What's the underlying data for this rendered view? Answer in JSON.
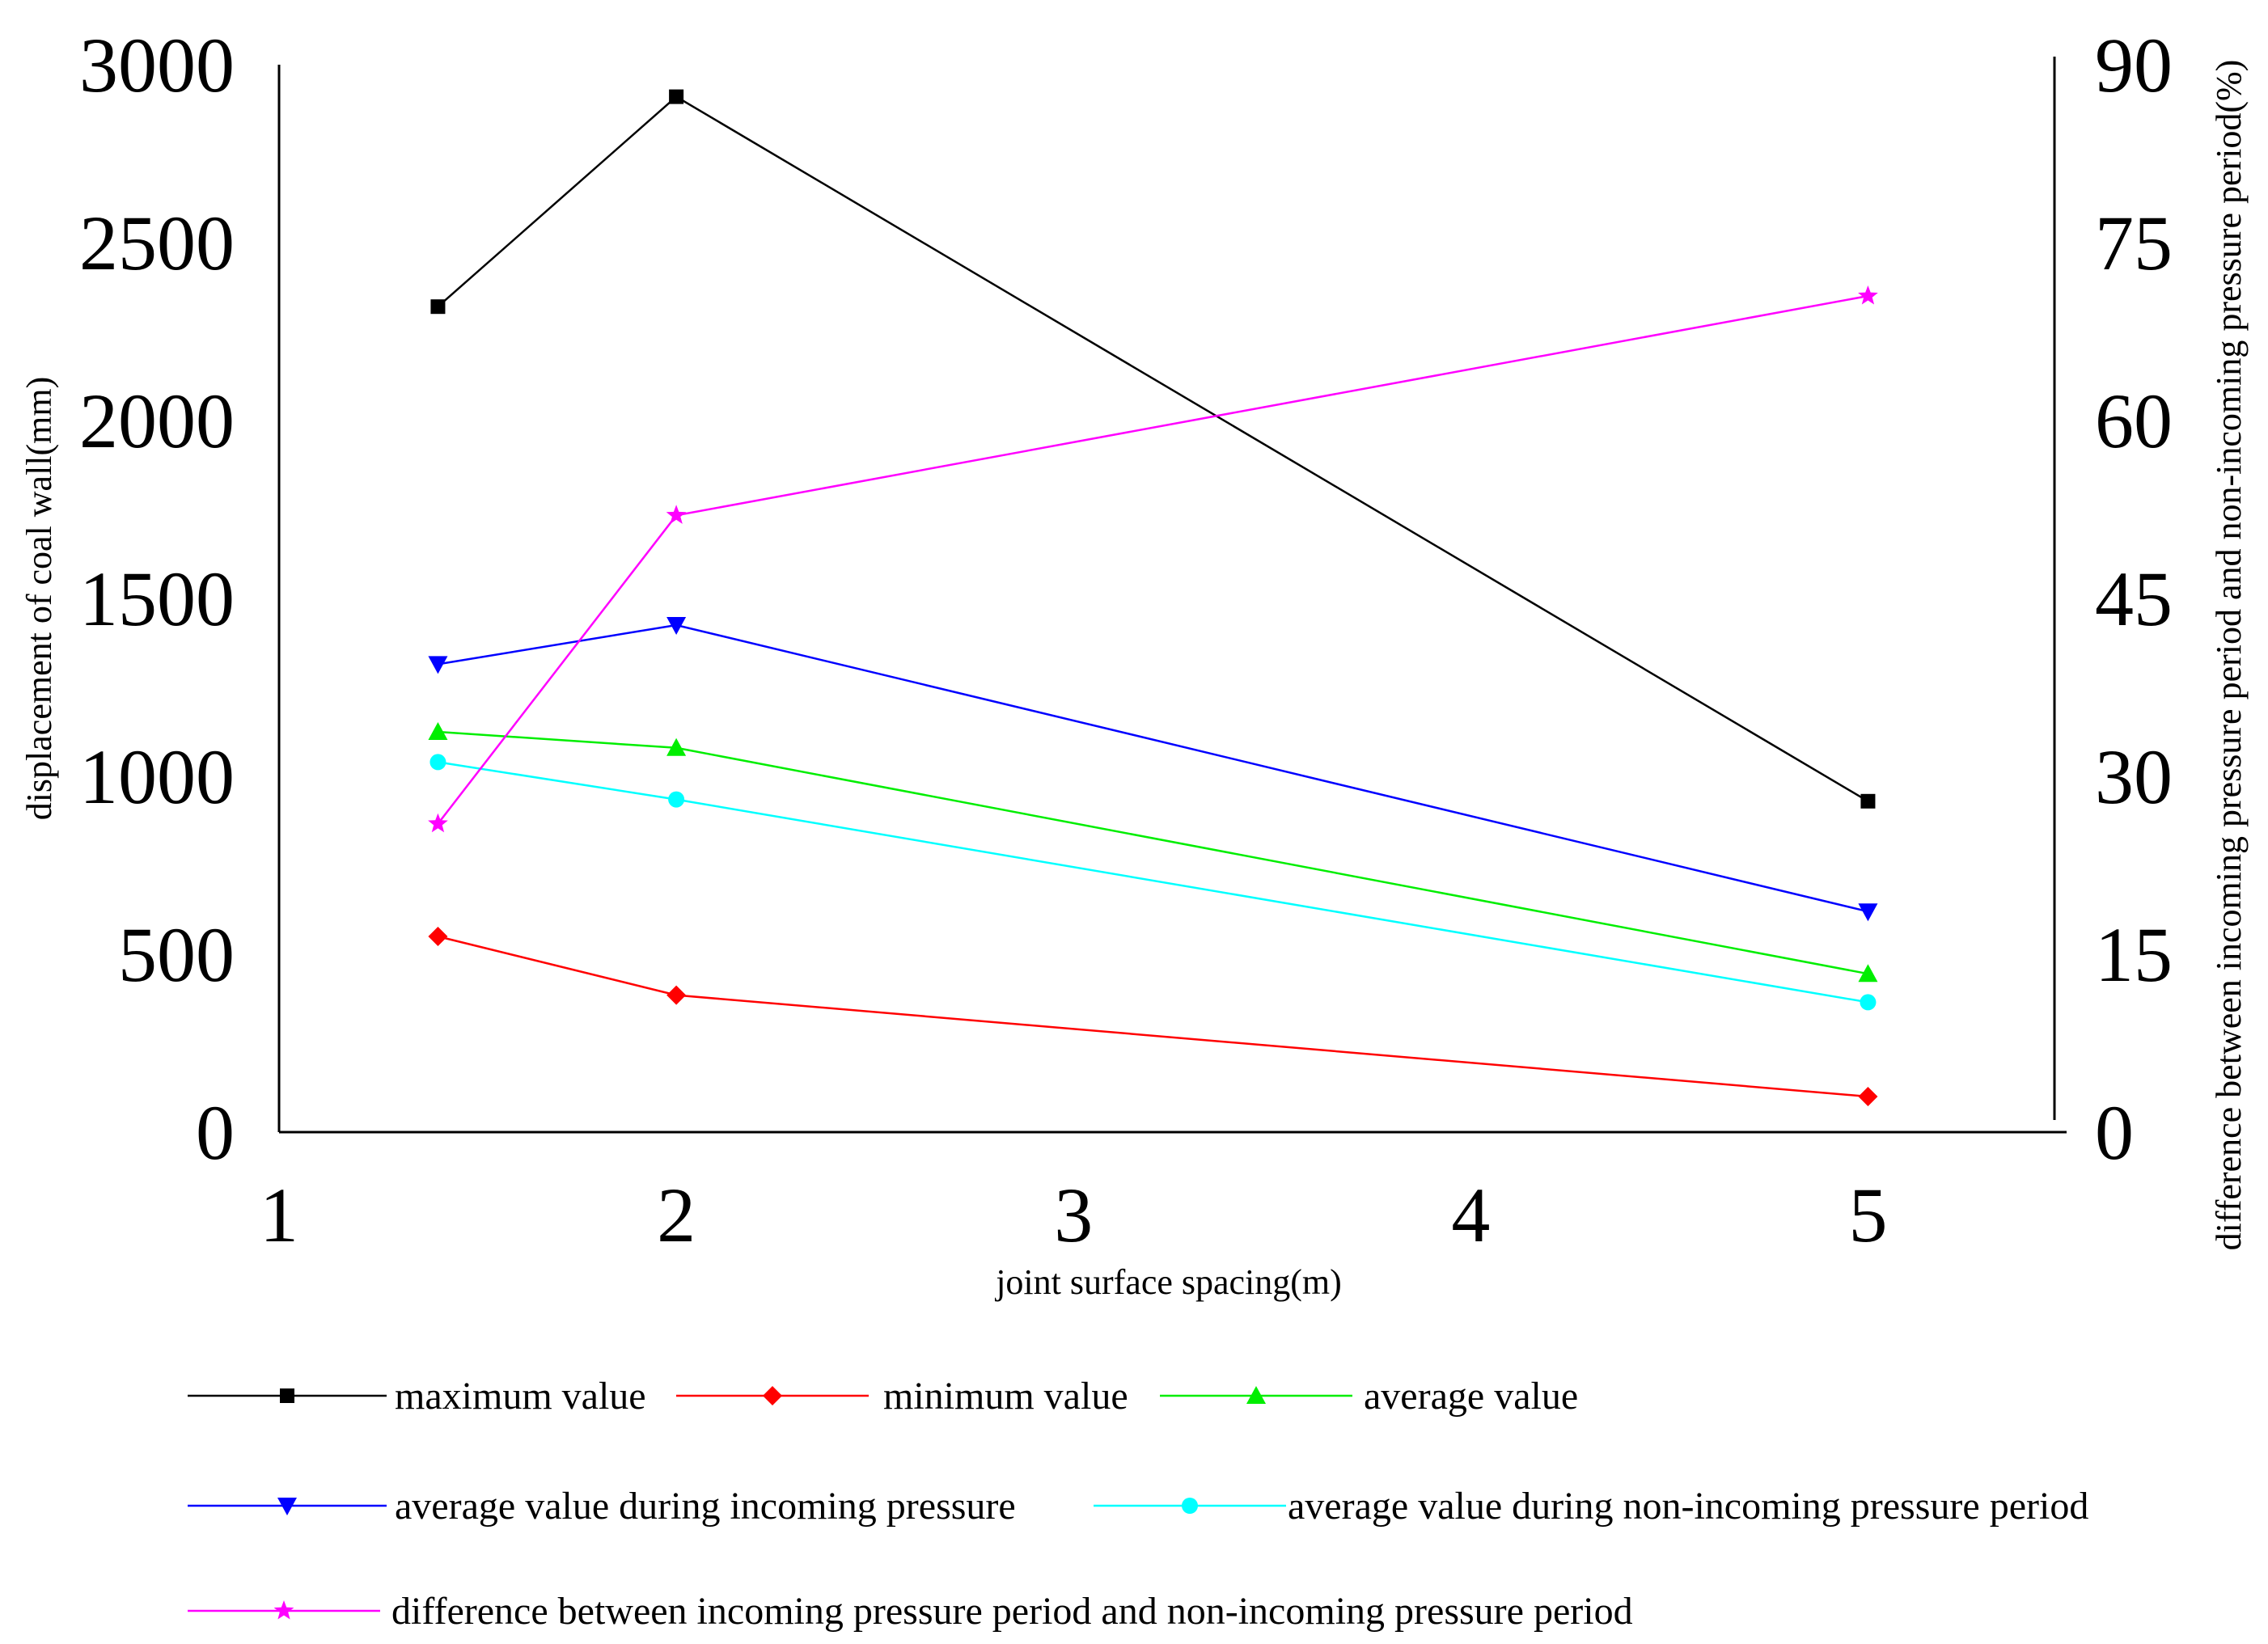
{
  "chart_data": {
    "type": "line",
    "title": "",
    "xlabel": "joint surface spacing(m)",
    "ylabel": "displacement of coal wall(mm)",
    "y2label": "difference between incoming pressure period and non-incoming pressure period(%)",
    "x_tick_labels": [
      "1",
      "2",
      "3",
      "4",
      "5"
    ],
    "x_categories": [
      1.4,
      2,
      5
    ],
    "xlim": [
      1,
      5.5
    ],
    "ylim": [
      0,
      3000
    ],
    "y_ticks": [
      0,
      500,
      1000,
      1500,
      2000,
      2500,
      3000
    ],
    "y2lim": [
      0,
      90
    ],
    "y2_ticks": [
      0,
      15,
      30,
      45,
      60,
      75,
      90
    ],
    "grid": false,
    "legend_position": "bottom",
    "series": [
      {
        "name": "maximum value",
        "axis": "left",
        "color": "#000000",
        "marker": "square",
        "values": [
          2320,
          2910,
          930
        ]
      },
      {
        "name": "minimum value",
        "axis": "left",
        "color": "#ff0000",
        "marker": "diamond",
        "values": [
          550,
          385,
          100
        ]
      },
      {
        "name": "average value",
        "axis": "left",
        "color": "#00ee00",
        "marker": "triangle-up",
        "values": [
          1125,
          1080,
          445
        ]
      },
      {
        "name": "average value during incoming pressure",
        "axis": "left",
        "color": "#0000ff",
        "marker": "triangle-down",
        "values": [
          1315,
          1425,
          620
        ]
      },
      {
        "name": "average value during non-incoming pressure period",
        "axis": "left",
        "color": "#00ffff",
        "marker": "circle",
        "values": [
          1040,
          935,
          365
        ]
      },
      {
        "name": "difference between incoming pressure period and non-incoming pressure period",
        "axis": "right",
        "color": "#ff00ff",
        "marker": "star",
        "values": [
          26,
          52,
          70.5
        ]
      }
    ]
  }
}
